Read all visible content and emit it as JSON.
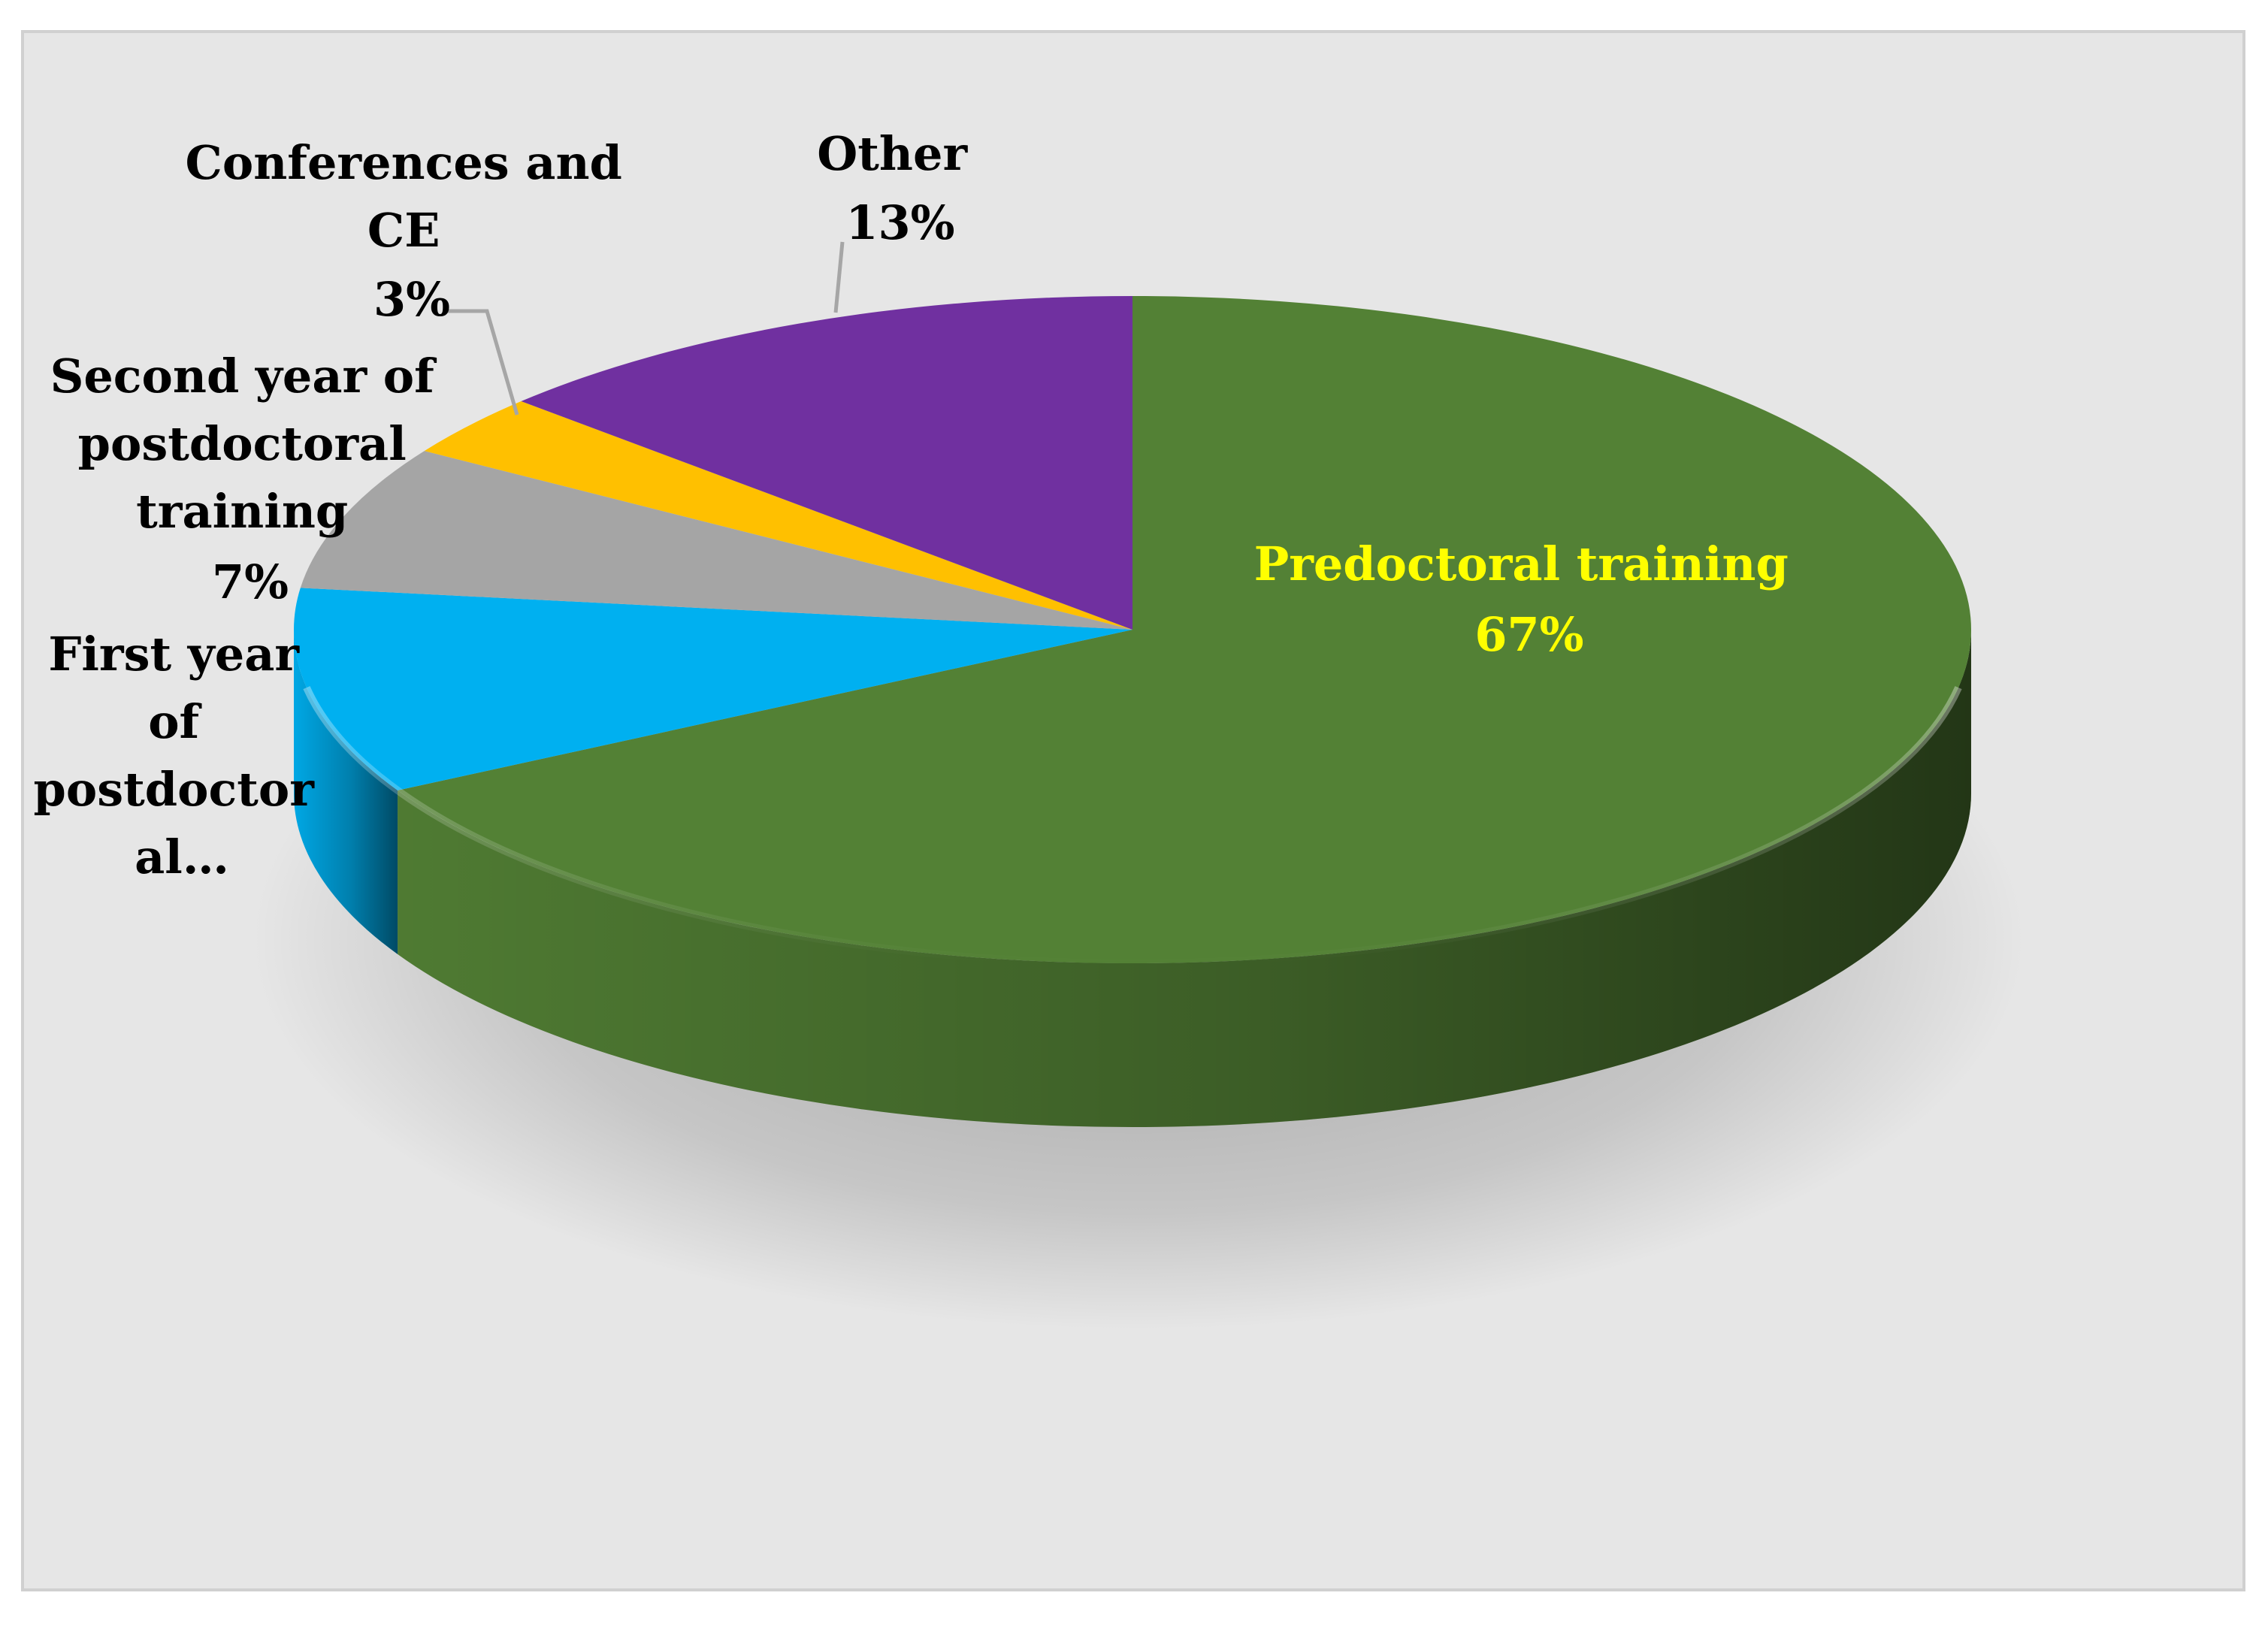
{
  "chart_data": {
    "type": "pie",
    "title": "",
    "slices": [
      {
        "label": "Predoctoral training",
        "value": 67,
        "value_label": "67%",
        "color": "#538135",
        "label_color": "#ffff00"
      },
      {
        "label": "First year of postdoctoral...",
        "value": 10,
        "value_label": "",
        "color": "#00b0f0",
        "label_color": "#000000"
      },
      {
        "label": "Second year of postdoctoral training",
        "value": 7,
        "value_label": "7%",
        "color": "#a5a5a5",
        "label_color": "#000000"
      },
      {
        "label": "Conferences and CE",
        "value": 3,
        "value_label": "3%",
        "color": "#ffc000",
        "label_color": "#000000"
      },
      {
        "label": "Other",
        "value": 13,
        "value_label": "13%",
        "color": "#7030a0",
        "label_color": "#000000"
      }
    ],
    "label_lines": {
      "predoctoral": [
        "Predoctoral training",
        "67%"
      ],
      "first_year": [
        "First year",
        "of",
        "postdoctor",
        "al…"
      ],
      "second_year": [
        "Second year of",
        "postdoctoral",
        "training",
        "7%"
      ],
      "conferences": [
        "Conferences and",
        "CE",
        "3%"
      ],
      "other": [
        "Other",
        "13%"
      ]
    },
    "leader_color": "#a6a6a6",
    "background": "#e6e6e6"
  }
}
